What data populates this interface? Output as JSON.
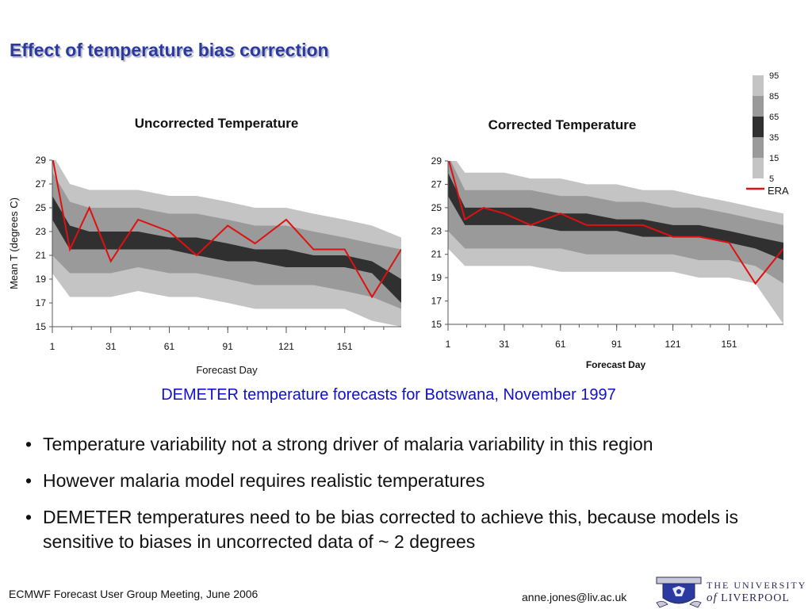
{
  "page": {
    "title": "Effect of temperature bias correction",
    "subtitle": "DEMETER temperature forecasts for Botswana, November 1997",
    "bullets": [
      "Temperature variability not a strong driver of malaria variability in this region",
      "However malaria model requires realistic temperatures",
      "DEMETER temperatures need to be bias corrected to achieve this, because models is sensitive to biases in uncorrected data of ~ 2 degrees"
    ],
    "footer": {
      "meeting": "ECMWF Forecast User Group Meeting, June 2006",
      "email": "anne.jones@liv.ac.uk",
      "university_line1": "THE UNIVERSITY",
      "university_of": "of",
      "university_line2": "LIVERPOOL"
    }
  },
  "colors": {
    "band_outer": "#c4c4c4",
    "band_mid": "#9a9a9a",
    "band_inner": "#303030",
    "era": "#e01010",
    "title": "#2b3aa0",
    "subtitle": "#1010cc"
  },
  "legend": {
    "levels": [
      "95",
      "85",
      "65",
      "35",
      "15",
      "5"
    ],
    "era_label": "ERA"
  },
  "chart_data": [
    {
      "type": "area",
      "title": "Uncorrected Temperature",
      "xlabel": "Forecast Day",
      "ylabel": "Mean T (degrees C)",
      "xlim": [
        1,
        180
      ],
      "ylim": [
        15,
        29
      ],
      "xticks": [
        "1",
        "31",
        "61",
        "91",
        "121",
        "151"
      ],
      "yticks": [
        "29",
        "27",
        "25",
        "23",
        "21",
        "19",
        "17",
        "15"
      ],
      "x": [
        1,
        10,
        20,
        31,
        45,
        61,
        75,
        91,
        105,
        121,
        135,
        151,
        165,
        180
      ],
      "series": [
        {
          "name": "5",
          "values": [
            19.5,
            17.5,
            17.5,
            17.5,
            18.0,
            17.5,
            17.5,
            17.0,
            16.5,
            16.5,
            16.5,
            16.5,
            15.5,
            15.0
          ]
        },
        {
          "name": "15",
          "values": [
            21.0,
            19.5,
            19.5,
            19.5,
            20.0,
            19.5,
            19.5,
            19.0,
            18.5,
            18.5,
            18.5,
            18.0,
            17.5,
            16.5
          ]
        },
        {
          "name": "35",
          "values": [
            24.0,
            21.5,
            21.5,
            21.5,
            21.5,
            21.5,
            21.0,
            20.5,
            20.5,
            20.0,
            20.0,
            20.0,
            19.5,
            17.0
          ]
        },
        {
          "name": "65",
          "values": [
            26.0,
            23.5,
            23.0,
            23.0,
            23.0,
            22.5,
            22.5,
            22.0,
            21.5,
            21.5,
            21.0,
            21.0,
            20.5,
            19.0
          ]
        },
        {
          "name": "85",
          "values": [
            28.0,
            25.5,
            25.0,
            25.0,
            25.0,
            24.5,
            24.5,
            24.0,
            23.5,
            23.5,
            23.0,
            22.5,
            22.0,
            21.5
          ]
        },
        {
          "name": "95",
          "values": [
            29.5,
            27.0,
            26.5,
            26.5,
            26.5,
            26.0,
            26.0,
            25.5,
            25.0,
            25.0,
            24.5,
            24.0,
            23.5,
            22.5
          ]
        },
        {
          "name": "ERA",
          "values": [
            29.3,
            21.5,
            25.0,
            20.5,
            24.0,
            23.0,
            21.0,
            23.5,
            22.0,
            24.0,
            21.5,
            21.5,
            17.5,
            21.5
          ]
        }
      ]
    },
    {
      "type": "area",
      "title": "Corrected Temperature",
      "xlabel": "Forecast Day",
      "ylabel": "",
      "xlim": [
        1,
        180
      ],
      "ylim": [
        15,
        29
      ],
      "xticks": [
        "1",
        "31",
        "61",
        "91",
        "121",
        "151"
      ],
      "yticks": [
        "29",
        "27",
        "25",
        "23",
        "21",
        "19",
        "17",
        "15"
      ],
      "x": [
        1,
        10,
        20,
        31,
        45,
        61,
        75,
        91,
        105,
        121,
        135,
        151,
        165,
        180
      ],
      "series": [
        {
          "name": "5",
          "values": [
            21.5,
            20.0,
            20.0,
            20.0,
            20.0,
            19.5,
            19.5,
            19.5,
            19.5,
            19.5,
            19.0,
            19.0,
            18.5,
            15.0
          ]
        },
        {
          "name": "15",
          "values": [
            23.0,
            21.5,
            21.5,
            21.5,
            21.5,
            21.5,
            21.0,
            21.0,
            21.0,
            21.0,
            20.5,
            20.5,
            20.0,
            18.5
          ]
        },
        {
          "name": "35",
          "values": [
            26.0,
            23.5,
            23.5,
            23.5,
            23.5,
            23.0,
            23.0,
            23.0,
            22.5,
            22.5,
            22.5,
            22.0,
            21.5,
            20.5
          ]
        },
        {
          "name": "65",
          "values": [
            28.0,
            25.0,
            25.0,
            25.0,
            25.0,
            24.5,
            24.5,
            24.0,
            24.0,
            23.5,
            23.5,
            23.0,
            22.5,
            22.0
          ]
        },
        {
          "name": "85",
          "values": [
            29.5,
            26.5,
            26.5,
            26.5,
            26.5,
            26.0,
            26.0,
            25.5,
            25.5,
            25.0,
            25.0,
            24.5,
            24.0,
            23.5
          ]
        },
        {
          "name": "95",
          "values": [
            30.0,
            28.0,
            28.0,
            28.0,
            27.5,
            27.5,
            27.0,
            27.0,
            26.5,
            26.5,
            26.0,
            25.5,
            25.0,
            24.5
          ]
        },
        {
          "name": "ERA",
          "values": [
            29.3,
            24.0,
            25.0,
            24.5,
            23.5,
            24.5,
            23.5,
            23.5,
            23.5,
            22.5,
            22.5,
            22.0,
            18.5,
            21.5
          ]
        }
      ]
    }
  ]
}
